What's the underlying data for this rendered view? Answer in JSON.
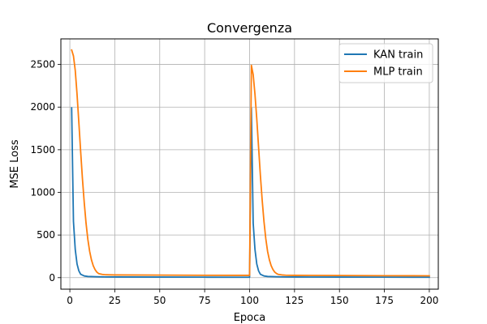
{
  "chart_data": {
    "type": "line",
    "title": "Convergenza",
    "xlabel": "Epoca",
    "ylabel": "MSE Loss",
    "xlim": [
      -5,
      205
    ],
    "ylim": [
      -135,
      2800
    ],
    "x_ticks": [
      0,
      25,
      50,
      75,
      100,
      125,
      150,
      175,
      200
    ],
    "x_tick_labels": [
      "0",
      "25",
      "50",
      "75",
      "100",
      "125",
      "150",
      "175",
      "200"
    ],
    "y_ticks": [
      0,
      500,
      1000,
      1500,
      2000,
      2500
    ],
    "y_tick_labels": [
      "0",
      "500",
      "1000",
      "1500",
      "2000",
      "2500"
    ],
    "grid": true,
    "legend_position": "top-right",
    "series": [
      {
        "name": "KAN train",
        "color": "#1f77b4",
        "x": [
          1,
          2,
          3,
          4,
          5,
          6,
          8,
          10,
          15,
          20,
          25,
          50,
          75,
          100,
          101,
          102,
          103,
          104,
          105,
          106,
          108,
          110,
          115,
          120,
          125,
          150,
          175,
          200
        ],
        "y": [
          1990,
          660,
          330,
          160,
          80,
          40,
          20,
          14,
          11,
          9,
          8,
          7,
          6,
          5,
          1990,
          640,
          330,
          160,
          80,
          40,
          20,
          14,
          11,
          9,
          8,
          7,
          6,
          5
        ]
      },
      {
        "name": "MLP train",
        "color": "#ff7f0e",
        "x": [
          1,
          2,
          3,
          4,
          5,
          6,
          7,
          8,
          9,
          10,
          11,
          12,
          13,
          14,
          15,
          16,
          18,
          20,
          22,
          25,
          50,
          75,
          100,
          101,
          102,
          103,
          104,
          105,
          106,
          107,
          108,
          109,
          110,
          111,
          112,
          113,
          114,
          115,
          116,
          118,
          120,
          122,
          125,
          150,
          175,
          200
        ],
        "y": [
          2670,
          2600,
          2430,
          2150,
          1820,
          1480,
          1160,
          880,
          640,
          450,
          310,
          210,
          140,
          95,
          65,
          48,
          38,
          34,
          33,
          32,
          30,
          28,
          27,
          2490,
          2380,
          2150,
          1860,
          1530,
          1200,
          910,
          660,
          460,
          310,
          210,
          140,
          95,
          65,
          48,
          38,
          32,
          29,
          28,
          27,
          25,
          23,
          22
        ]
      }
    ]
  }
}
